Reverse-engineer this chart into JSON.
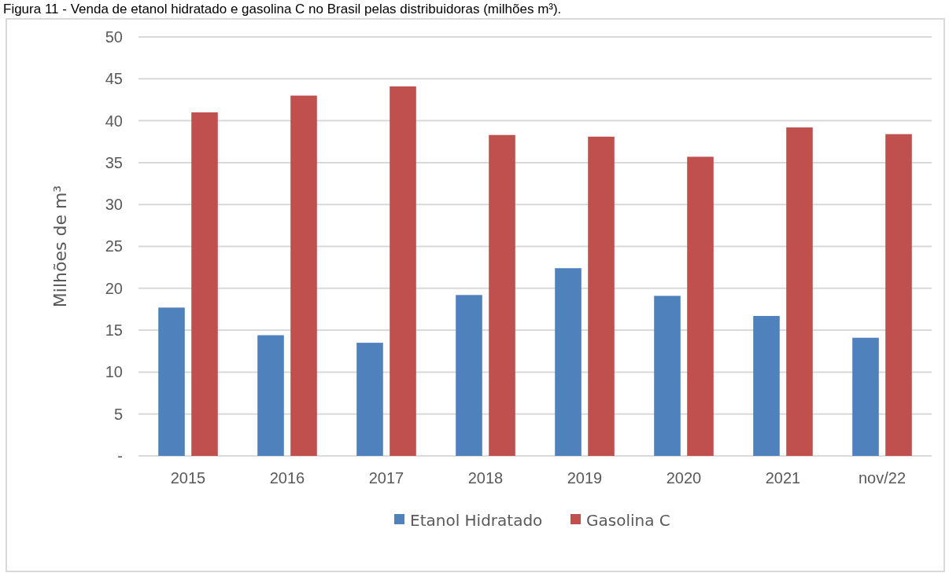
{
  "chart_data": {
    "type": "bar",
    "title": "Figura 11 - Venda de etanol hidratado e gasolina C no Brasil pelas distribuidoras (milhões m³).",
    "ylabel": "Milhões de m³",
    "categories": [
      "2015",
      "2016",
      "2017",
      "2018",
      "2019",
      "2020",
      "2021",
      "nov/22"
    ],
    "series": [
      {
        "name": "Etanol Hidratado",
        "color": "#4f81bd",
        "values": [
          17.7,
          14.4,
          13.5,
          19.2,
          22.4,
          19.1,
          16.7,
          14.1
        ]
      },
      {
        "name": "Gasolina C",
        "color": "#c0504d",
        "values": [
          41.0,
          43.0,
          44.1,
          38.3,
          38.1,
          35.7,
          39.2,
          38.4
        ]
      }
    ],
    "ylim": [
      0,
      50
    ],
    "yticks": [
      {
        "value": 0,
        "label": "-"
      },
      5,
      10,
      15,
      20,
      25,
      30,
      35,
      40,
      45,
      50
    ],
    "grid": "y",
    "legend": "bottom"
  }
}
